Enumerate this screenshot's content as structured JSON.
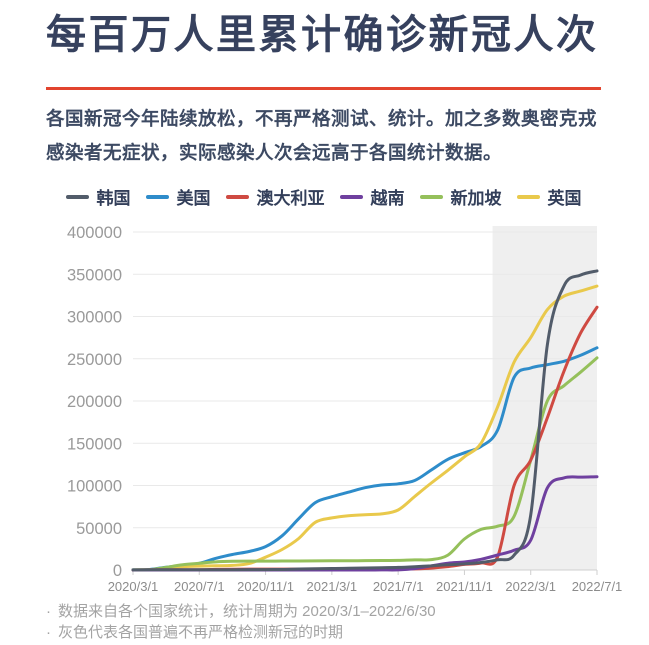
{
  "page": {
    "title": "每百万人里累计确诊新冠人次",
    "subtitle_line1": "各国新冠今年陆续放松，不再严格测试、统计。加之多数奥密克戎",
    "subtitle_line2": "感染者无症状，实际感染人次会远高于各国统计数据。",
    "accent_color": "#e2442e",
    "footnote_bullet": "·",
    "footnotes": [
      "数据来自各个国家统计，统计周期为 2020/3/1–2022/6/30",
      "灰色代表各国普遍不再严格检测新冠的时期"
    ]
  },
  "chart_data": {
    "type": "line",
    "x_start": "2020/3/1",
    "x_end": "2022/7/1",
    "x_interval": "monthly",
    "months_span": 28,
    "x_tick_labels": [
      "2020/3/1",
      "2020/7/1",
      "2020/11/1",
      "2021/3/1",
      "2021/7/1",
      "2021/11/1",
      "2022/3/1",
      "2022/7/1"
    ],
    "ylim": [
      0,
      400000
    ],
    "ytick_step": 50000,
    "grid": true,
    "legend_position": "top",
    "shaded_region": {
      "from_month": 21.7,
      "to_month": 28,
      "color": "#efefef",
      "meaning": "各国普遍不再严格检测新冠的时期"
    },
    "series": [
      {
        "name": "韩国",
        "color": "#525c6a",
        "values": [
          150,
          200,
          210,
          225,
          250,
          280,
          390,
          470,
          510,
          630,
          1200,
          1530,
          1740,
          2030,
          2380,
          2700,
          3050,
          3900,
          4900,
          6150,
          7200,
          8900,
          12100,
          17600,
          65000,
          266000,
          336000,
          349000,
          354000
        ]
      },
      {
        "name": "美国",
        "color": "#2e8cca",
        "values": [
          150,
          650,
          3300,
          5400,
          7900,
          13800,
          18400,
          21900,
          27700,
          40500,
          60700,
          79800,
          86700,
          92100,
          97400,
          100600,
          102000,
          105900,
          118400,
          131000,
          138700,
          146200,
          165600,
          228000,
          239000,
          243000,
          247000,
          254000,
          263000
        ]
      },
      {
        "name": "澳大利亚",
        "color": "#cf4a42",
        "values": [
          20,
          175,
          260,
          280,
          310,
          700,
          1000,
          1050,
          1070,
          1085,
          1100,
          1110,
          1125,
          1135,
          1155,
          1165,
          1190,
          1330,
          2200,
          4000,
          6600,
          8300,
          15500,
          100000,
          130000,
          180000,
          235000,
          280000,
          311000
        ]
      },
      {
        "name": "越南",
        "color": "#6f409f",
        "values": [
          0,
          3,
          3,
          4,
          4,
          11,
          11,
          11,
          12,
          14,
          15,
          18,
          26,
          29,
          35,
          75,
          175,
          1700,
          4850,
          8100,
          9500,
          12700,
          17700,
          23400,
          35300,
          97000,
          109000,
          110000,
          110400
        ]
      },
      {
        "name": "新加坡",
        "color": "#95c05b",
        "values": [
          180,
          300,
          3100,
          6200,
          7900,
          9600,
          10300,
          10500,
          10550,
          10600,
          10700,
          10800,
          10900,
          11000,
          11100,
          11300,
          11400,
          12000,
          12300,
          17600,
          36700,
          48000,
          51800,
          63600,
          130000,
          200000,
          218000,
          234000,
          251000
        ]
      },
      {
        "name": "英国",
        "color": "#e9c94c",
        "values": [
          40,
          380,
          2550,
          4050,
          4600,
          4950,
          5500,
          7600,
          15200,
          24300,
          37300,
          56500,
          61700,
          64300,
          65500,
          66400,
          71000,
          87000,
          103000,
          118000,
          134000,
          150000,
          193000,
          246000,
          275000,
          308000,
          324000,
          330000,
          336000
        ]
      }
    ],
    "draw_order": [
      1,
      5,
      4,
      2,
      3,
      0
    ]
  }
}
